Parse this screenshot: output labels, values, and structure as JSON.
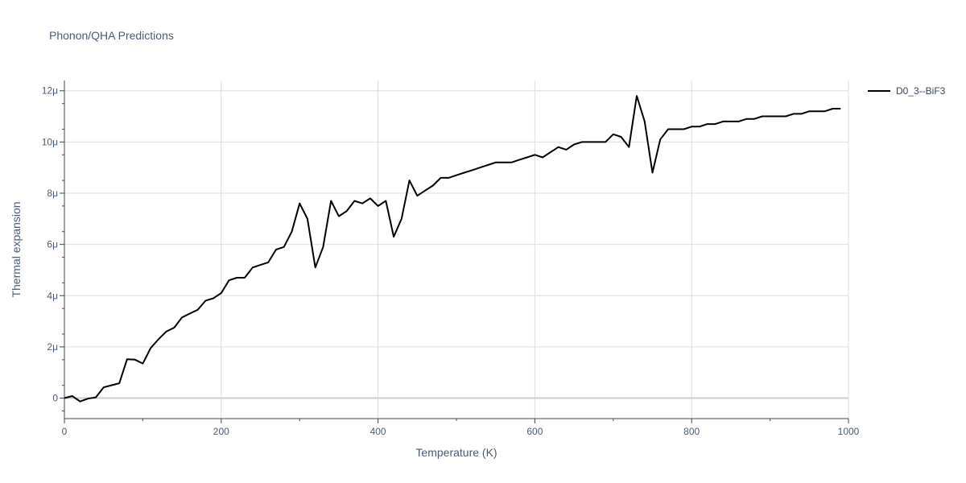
{
  "colors": {
    "line": "#000000",
    "grid": "#dddddd",
    "zero_line": "#cccccc",
    "axis": "#444444",
    "text": "#4a5a73",
    "background": "#ffffff"
  },
  "chart_data": {
    "type": "line",
    "title": "Phonon/QHA Predictions",
    "xlabel": "Temperature (K)",
    "ylabel": "Thermal expansion",
    "xlim": [
      0,
      1000
    ],
    "ylim": [
      -8e-07,
      1.24e-05
    ],
    "grid": true,
    "legend_position": "top-right",
    "x_ticks": [
      0,
      200,
      400,
      600,
      800,
      1000
    ],
    "x_tick_labels": [
      "0",
      "200",
      "400",
      "600",
      "800",
      "1000"
    ],
    "y_ticks": [
      0,
      2e-06,
      4e-06,
      6e-06,
      8e-06,
      1e-05,
      1.2e-05
    ],
    "y_tick_labels": [
      "0",
      "2μ",
      "4μ",
      "6μ",
      "8μ",
      "10μ",
      "12μ"
    ],
    "series": [
      {
        "name": "D0_3--BiF3",
        "x": [
          0,
          10,
          20,
          30,
          40,
          50,
          60,
          70,
          80,
          90,
          100,
          110,
          120,
          130,
          140,
          150,
          160,
          170,
          180,
          190,
          200,
          210,
          220,
          230,
          240,
          250,
          260,
          270,
          280,
          290,
          300,
          310,
          320,
          330,
          340,
          350,
          360,
          370,
          380,
          390,
          400,
          410,
          420,
          430,
          440,
          450,
          460,
          470,
          480,
          490,
          500,
          510,
          520,
          530,
          540,
          550,
          560,
          570,
          580,
          590,
          600,
          610,
          620,
          630,
          640,
          650,
          660,
          670,
          680,
          690,
          700,
          710,
          720,
          730,
          740,
          750,
          760,
          770,
          780,
          790,
          800,
          810,
          820,
          830,
          840,
          850,
          860,
          870,
          880,
          890,
          900,
          910,
          920,
          930,
          940,
          950,
          960,
          970,
          980,
          990
        ],
        "values": [
          0.0,
          8e-08,
          -1.3e-07,
          -2e-08,
          3e-08,
          4.2e-07,
          5e-07,
          5.8e-07,
          1.52e-06,
          1.5e-06,
          1.35e-06,
          1.95e-06,
          2.3e-06,
          2.6e-06,
          2.75e-06,
          3.15e-06,
          3.3e-06,
          3.45e-06,
          3.8e-06,
          3.9e-06,
          4.1e-06,
          4.6e-06,
          4.7e-06,
          4.7e-06,
          5.1e-06,
          5.2e-06,
          5.3e-06,
          5.8e-06,
          5.9e-06,
          6.5e-06,
          7.6e-06,
          7e-06,
          5.1e-06,
          5.9e-06,
          7.7e-06,
          7.1e-06,
          7.3e-06,
          7.7e-06,
          7.6e-06,
          7.8e-06,
          7.5e-06,
          7.7e-06,
          6.3e-06,
          7e-06,
          8.5e-06,
          7.9e-06,
          8.1e-06,
          8.3e-06,
          8.6e-06,
          8.6e-06,
          8.7e-06,
          8.8e-06,
          8.9e-06,
          9e-06,
          9.1e-06,
          9.2e-06,
          9.2e-06,
          9.2e-06,
          9.3e-06,
          9.4e-06,
          9.5e-06,
          9.4e-06,
          9.6e-06,
          9.8e-06,
          9.7e-06,
          9.9e-06,
          1e-05,
          1e-05,
          1e-05,
          1e-05,
          1.03e-05,
          1.02e-05,
          9.8e-06,
          1.18e-05,
          1.08e-05,
          8.8e-06,
          1.01e-05,
          1.05e-05,
          1.05e-05,
          1.05e-05,
          1.06e-05,
          1.06e-05,
          1.07e-05,
          1.07e-05,
          1.08e-05,
          1.08e-05,
          1.08e-05,
          1.09e-05,
          1.09e-05,
          1.1e-05,
          1.1e-05,
          1.1e-05,
          1.1e-05,
          1.11e-05,
          1.11e-05,
          1.12e-05,
          1.12e-05,
          1.12e-05,
          1.13e-05,
          1.13e-05
        ]
      }
    ]
  }
}
